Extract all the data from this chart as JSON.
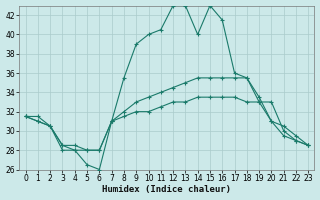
{
  "xlabel": "Humidex (Indice chaleur)",
  "xlim": [
    -0.5,
    23.5
  ],
  "ylim": [
    26,
    43
  ],
  "yticks": [
    26,
    28,
    30,
    32,
    34,
    36,
    38,
    40,
    42
  ],
  "xticks": [
    0,
    1,
    2,
    3,
    4,
    5,
    6,
    7,
    8,
    9,
    10,
    11,
    12,
    13,
    14,
    15,
    16,
    17,
    18,
    19,
    20,
    21,
    22,
    23
  ],
  "background_color": "#cce9e9",
  "grid_color": "#aacccc",
  "line_color": "#1a7a6a",
  "series": [
    {
      "x": [
        0,
        1,
        2,
        3,
        4,
        5,
        6,
        7,
        8,
        9,
        10,
        11,
        12,
        13,
        14,
        15,
        16,
        17,
        18,
        19,
        20,
        21,
        22,
        23
      ],
      "y": [
        31.5,
        31.5,
        30.5,
        28.0,
        28.0,
        26.5,
        26.0,
        31.0,
        35.5,
        39.0,
        40.0,
        40.5,
        43.0,
        43.0,
        40.0,
        43.0,
        41.5,
        36.0,
        35.5,
        33.5,
        31.0,
        29.5,
        29.0,
        28.5
      ]
    },
    {
      "x": [
        0,
        1,
        2,
        3,
        4,
        5,
        6,
        7,
        8,
        9,
        10,
        11,
        12,
        13,
        14,
        15,
        16,
        17,
        18,
        19,
        20,
        21,
        22,
        23
      ],
      "y": [
        31.5,
        31.0,
        30.5,
        28.5,
        28.0,
        28.0,
        28.0,
        31.0,
        32.0,
        33.0,
        33.5,
        34.0,
        34.5,
        35.0,
        35.5,
        35.5,
        35.5,
        35.5,
        35.5,
        33.0,
        31.0,
        30.5,
        29.5,
        28.5
      ]
    },
    {
      "x": [
        0,
        1,
        2,
        3,
        4,
        5,
        6,
        7,
        8,
        9,
        10,
        11,
        12,
        13,
        14,
        15,
        16,
        17,
        18,
        19,
        20,
        21,
        22,
        23
      ],
      "y": [
        31.5,
        31.0,
        30.5,
        28.5,
        28.5,
        28.0,
        28.0,
        31.0,
        31.5,
        32.0,
        32.0,
        32.5,
        33.0,
        33.0,
        33.5,
        33.5,
        33.5,
        33.5,
        33.0,
        33.0,
        33.0,
        30.0,
        29.0,
        28.5
      ]
    }
  ]
}
